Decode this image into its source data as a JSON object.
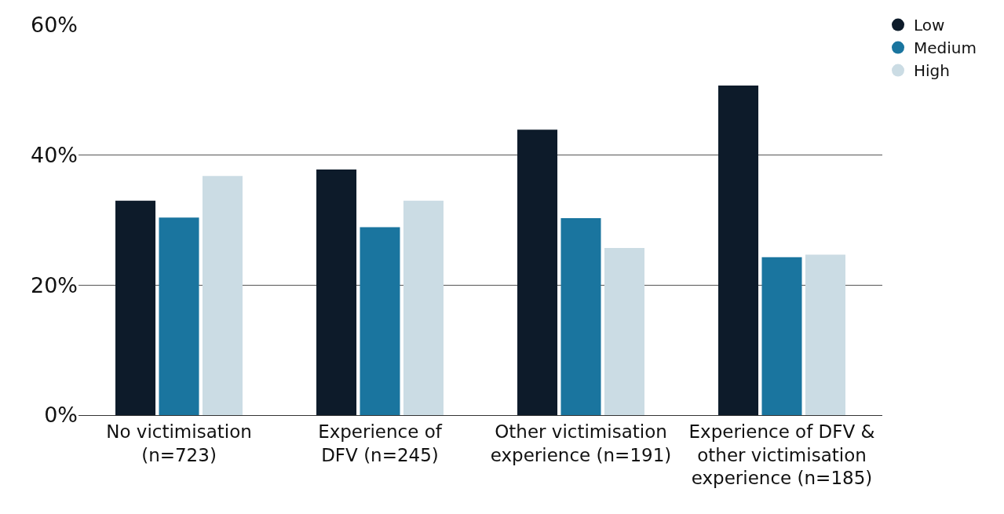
{
  "chart_data": {
    "type": "bar",
    "categories": [
      "No victimisation\n(n=723)",
      "Experience of\nDFV (n=245)",
      "Other victimisation\nexperience (n=191)",
      "Experience of DFV &\nother victimisation\nexperience (n=185)"
    ],
    "series": [
      {
        "name": "Low",
        "color": "#0d1b2a",
        "values": [
          33,
          37.8,
          43.9,
          50.7
        ]
      },
      {
        "name": "Medium",
        "color": "#1a759f",
        "values": [
          30.4,
          28.9,
          30.3,
          24.3
        ]
      },
      {
        "name": "High",
        "color": "#cbdce4",
        "values": [
          36.8,
          33,
          25.7,
          24.7
        ]
      }
    ],
    "ylim": [
      0,
      60
    ],
    "yticks": [
      {
        "value": 0,
        "label": "0%"
      },
      {
        "value": 20,
        "label": "20%"
      },
      {
        "value": 40,
        "label": "40%"
      },
      {
        "value": 60,
        "label": "60%"
      }
    ],
    "grid": "y",
    "legend": "top right"
  }
}
